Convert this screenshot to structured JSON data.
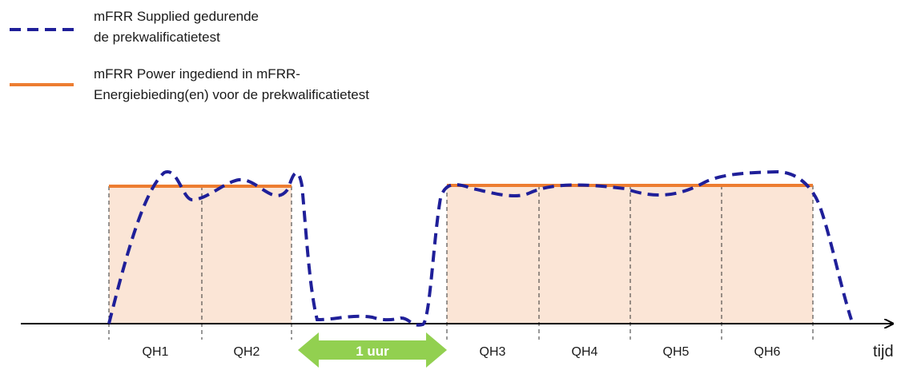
{
  "legend": {
    "supplied": {
      "line1": "mFRR Supplied gedurende",
      "line2": "de prekwalificatietest",
      "color": "#1f1f99"
    },
    "power": {
      "line1": "mFRR Power ingediend in mFRR-",
      "line2": "Energiebieding(en) voor de prekwalificatietest",
      "color": "#ed7d31"
    }
  },
  "intervals": [
    "QH1",
    "QH2",
    "QH3",
    "QH4",
    "QH5",
    "QH6"
  ],
  "gap_label": "1 uur",
  "axis_label": "tijd",
  "colors": {
    "fill": "#fbe5d6",
    "gap_arrow": "#92d050",
    "axis": "#000000"
  }
}
